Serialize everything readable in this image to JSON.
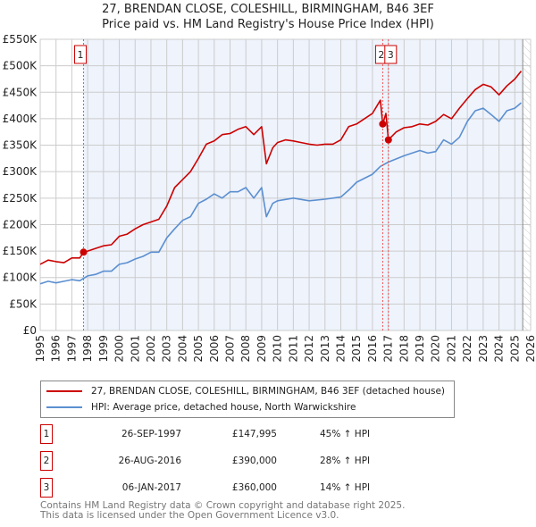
{
  "title_line1": "27, BRENDAN CLOSE, COLESHILL, BIRMINGHAM, B46 3EF",
  "title_line2": "Price paid vs. HM Land Registry's House Price Index (HPI)",
  "colors": {
    "property": "#cc0000",
    "hpi": "#5b8fd0",
    "shade": "#eef3fc",
    "grid": "#cccccc"
  },
  "chart_data": {
    "type": "line",
    "title": "27, BRENDAN CLOSE, COLESHILL, BIRMINGHAM, B46 3EF — Price paid vs. HM Land Registry's House Price Index (HPI)",
    "xlabel": "",
    "ylabel": "",
    "xlim": [
      1995,
      2026
    ],
    "ylim": [
      0,
      550000
    ],
    "grid": true,
    "x_ticks": [
      "1995",
      "1996",
      "1997",
      "1998",
      "1999",
      "2000",
      "2001",
      "2002",
      "2003",
      "2004",
      "2005",
      "2006",
      "2007",
      "2008",
      "2009",
      "2010",
      "2011",
      "2012",
      "2013",
      "2014",
      "2015",
      "2016",
      "2017",
      "2018",
      "2019",
      "2020",
      "2021",
      "2022",
      "2023",
      "2024",
      "2025",
      "2026"
    ],
    "y_ticks": [
      {
        "v": 0,
        "label": "£0"
      },
      {
        "v": 50000,
        "label": "£50K"
      },
      {
        "v": 100000,
        "label": "£100K"
      },
      {
        "v": 150000,
        "label": "£150K"
      },
      {
        "v": 200000,
        "label": "£200K"
      },
      {
        "v": 250000,
        "label": "£250K"
      },
      {
        "v": 300000,
        "label": "£300K"
      },
      {
        "v": 350000,
        "label": "£350K"
      },
      {
        "v": 400000,
        "label": "£400K"
      },
      {
        "v": 450000,
        "label": "£450K"
      },
      {
        "v": 500000,
        "label": "£500K"
      },
      {
        "v": 550000,
        "label": "£550K"
      }
    ],
    "series": [
      {
        "name": "27, BRENDAN CLOSE, COLESHILL, BIRMINGHAM, B46 3EF (detached house)",
        "x": [
          1995.0,
          1995.5,
          1996.0,
          1996.5,
          1997.0,
          1997.5,
          1997.74,
          1998.0,
          1998.5,
          1999.0,
          1999.5,
          2000.0,
          2000.5,
          2001.0,
          2001.5,
          2002.0,
          2002.5,
          2003.0,
          2003.5,
          2004.0,
          2004.5,
          2005.0,
          2005.5,
          2006.0,
          2006.5,
          2007.0,
          2007.5,
          2008.0,
          2008.5,
          2009.0,
          2009.3,
          2009.7,
          2010.0,
          2010.5,
          2011.0,
          2011.5,
          2012.0,
          2012.5,
          2013.0,
          2013.5,
          2014.0,
          2014.5,
          2015.0,
          2015.5,
          2016.0,
          2016.5,
          2016.65,
          2016.85,
          2017.01,
          2017.5,
          2018.0,
          2018.5,
          2019.0,
          2019.5,
          2020.0,
          2020.5,
          2021.0,
          2021.5,
          2022.0,
          2022.5,
          2023.0,
          2023.5,
          2024.0,
          2024.5,
          2025.0,
          2025.4
        ],
        "values": [
          125000,
          133000,
          130000,
          128000,
          137000,
          137000,
          147995,
          150000,
          155000,
          160000,
          162000,
          178000,
          182000,
          192000,
          200000,
          205000,
          210000,
          235000,
          270000,
          285000,
          300000,
          325000,
          352000,
          358000,
          370000,
          372000,
          380000,
          385000,
          370000,
          385000,
          315000,
          345000,
          355000,
          360000,
          358000,
          355000,
          352000,
          350000,
          352000,
          352000,
          360000,
          385000,
          390000,
          400000,
          410000,
          435000,
          390000,
          410000,
          360000,
          375000,
          383000,
          385000,
          390000,
          388000,
          395000,
          408000,
          400000,
          420000,
          438000,
          455000,
          465000,
          460000,
          445000,
          462000,
          475000,
          490000
        ]
      },
      {
        "name": "HPI: Average price, detached house, North Warwickshire",
        "x": [
          1995.0,
          1995.5,
          1996.0,
          1996.5,
          1997.0,
          1997.5,
          1998.0,
          1998.5,
          1999.0,
          1999.5,
          2000.0,
          2000.5,
          2001.0,
          2001.5,
          2002.0,
          2002.5,
          2003.0,
          2003.5,
          2004.0,
          2004.5,
          2005.0,
          2005.5,
          2006.0,
          2006.5,
          2007.0,
          2007.5,
          2008.0,
          2008.5,
          2009.0,
          2009.3,
          2009.7,
          2010.0,
          2011.0,
          2012.0,
          2013.0,
          2014.0,
          2014.5,
          2015.0,
          2016.0,
          2016.5,
          2017.0,
          2018.0,
          2019.0,
          2019.5,
          2020.0,
          2020.5,
          2021.0,
          2021.5,
          2022.0,
          2022.5,
          2023.0,
          2023.5,
          2024.0,
          2024.5,
          2025.0,
          2025.4
        ],
        "values": [
          88000,
          93000,
          90000,
          93000,
          96000,
          94000,
          103000,
          106000,
          112000,
          112000,
          125000,
          128000,
          135000,
          140000,
          148000,
          148000,
          175000,
          192000,
          208000,
          215000,
          240000,
          248000,
          258000,
          250000,
          262000,
          262000,
          270000,
          250000,
          270000,
          215000,
          240000,
          245000,
          250000,
          245000,
          248000,
          252000,
          265000,
          280000,
          295000,
          310000,
          318000,
          330000,
          340000,
          335000,
          338000,
          360000,
          352000,
          365000,
          395000,
          415000,
          420000,
          408000,
          395000,
          415000,
          420000,
          430000
        ]
      }
    ],
    "sales": [
      {
        "id": "1",
        "x": 1997.74,
        "value": 147995
      },
      {
        "id": "2",
        "x": 2016.65,
        "value": 390000
      },
      {
        "id": "3",
        "x": 2017.01,
        "value": 360000
      }
    ],
    "data_end_x": 2025.5
  },
  "legend": {
    "property_label": "27, BRENDAN CLOSE, COLESHILL, BIRMINGHAM, B46 3EF (detached house)",
    "hpi_label": "HPI: Average price, detached house, North Warwickshire"
  },
  "sales_table": [
    {
      "num": "1",
      "date": "26-SEP-1997",
      "price": "£147,995",
      "hpi": "45% ↑ HPI"
    },
    {
      "num": "2",
      "date": "26-AUG-2016",
      "price": "£390,000",
      "hpi": "28% ↑ HPI"
    },
    {
      "num": "3",
      "date": "06-JAN-2017",
      "price": "£360,000",
      "hpi": "14% ↑ HPI"
    }
  ],
  "footer": {
    "line1": "Contains HM Land Registry data © Crown copyright and database right 2025.",
    "line2": "This data is licensed under the Open Government Licence v3.0."
  }
}
